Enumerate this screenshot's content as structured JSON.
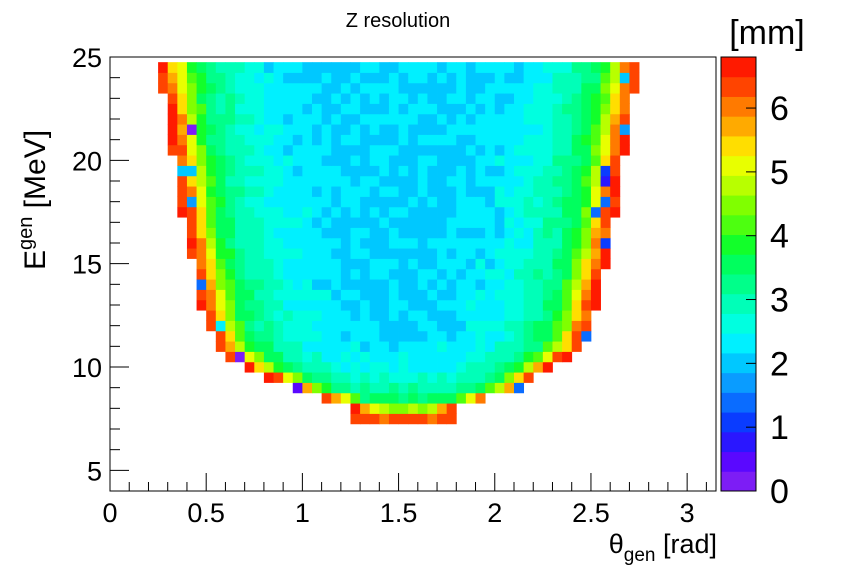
{
  "chart_data": {
    "type": "heatmap",
    "title": "Z resolution",
    "xlabel": {
      "base": "θ",
      "subscript": "gen",
      "unit": " [rad]"
    },
    "ylabel": {
      "base": "E",
      "superscript": "gen",
      "unit": " [MeV]"
    },
    "zlabel": "[mm]",
    "xlim": [
      0,
      3.15
    ],
    "ylim": [
      4,
      25
    ],
    "zlim": [
      0,
      6.8
    ],
    "x_ticks": [
      0,
      0.5,
      1,
      1.5,
      2,
      2.5,
      3
    ],
    "x_tick_labels": [
      "0",
      "0.5",
      "1",
      "1.5",
      "2",
      "2.5",
      "3"
    ],
    "y_ticks": [
      5,
      10,
      15,
      20,
      25
    ],
    "y_tick_labels": [
      "5",
      "10",
      "15",
      "20",
      "25"
    ],
    "z_ticks": [
      0,
      1,
      2,
      3,
      4,
      5,
      6
    ],
    "z_tick_labels": [
      "0",
      "1",
      "2",
      "3",
      "4",
      "5",
      "6"
    ],
    "bins": {
      "theta_min": 0.25,
      "theta_max": 2.75,
      "theta_width": 0.05,
      "e_min": 7.5,
      "e_max": 24.5,
      "e_width": 0.5
    },
    "region": [
      {
        "e": 8.0,
        "theta_lo": 1.25,
        "theta_hi": 1.8
      },
      {
        "e": 9.0,
        "theta_lo": 0.95,
        "theta_hi": 2.15
      },
      {
        "e": 10.0,
        "theta_lo": 0.7,
        "theta_hi": 2.3
      },
      {
        "e": 11.0,
        "theta_lo": 0.55,
        "theta_hi": 2.45
      },
      {
        "e": 12.0,
        "theta_lo": 0.5,
        "theta_hi": 2.5
      },
      {
        "e": 14.0,
        "theta_lo": 0.45,
        "theta_hi": 2.55
      },
      {
        "e": 16.0,
        "theta_lo": 0.4,
        "theta_hi": 2.6
      },
      {
        "e": 19.0,
        "theta_lo": 0.35,
        "theta_hi": 2.65
      },
      {
        "e": 22.0,
        "theta_lo": 0.3,
        "theta_hi": 2.7
      },
      {
        "e": 24.5,
        "theta_lo": 0.25,
        "theta_hi": 2.75
      }
    ],
    "profile": [
      {
        "edge_distance": 0.0,
        "z": 6.6
      },
      {
        "edge_distance": 0.05,
        "z": 6.2
      },
      {
        "edge_distance": 0.1,
        "z": 5.3
      },
      {
        "edge_distance": 0.15,
        "z": 4.3
      },
      {
        "edge_distance": 0.2,
        "z": 3.6
      },
      {
        "edge_distance": 0.3,
        "z": 3.1
      },
      {
        "edge_distance": 0.45,
        "z": 2.6
      },
      {
        "edge_distance": 0.6,
        "z": 2.3
      },
      {
        "edge_distance": 1.0,
        "z": 2.1
      }
    ],
    "palette": [
      "#7d1df5",
      "#5a08ff",
      "#2a17ff",
      "#0a3cff",
      "#0a6cff",
      "#0a9cff",
      "#00c8ff",
      "#00f0ff",
      "#00ffe0",
      "#00ffb8",
      "#00ff8a",
      "#00ff5e",
      "#12ff2a",
      "#4dff10",
      "#80ff00",
      "#b8ff00",
      "#e8ff00",
      "#ffde00",
      "#ffaa00",
      "#ff7a00",
      "#ff4400",
      "#ff1a00"
    ]
  }
}
